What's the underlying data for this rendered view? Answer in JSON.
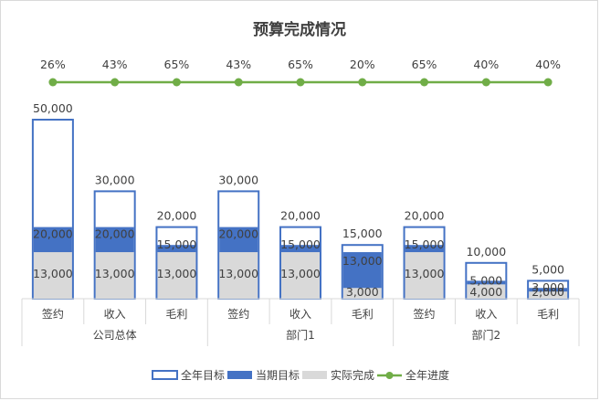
{
  "chart_data": {
    "type": "bar",
    "title": "预算完成情况",
    "groups": [
      {
        "name": "公司总体",
        "categories": [
          "签约",
          "收入",
          "毛利"
        ]
      },
      {
        "name": "部门1",
        "categories": [
          "签约",
          "收入",
          "毛利"
        ]
      },
      {
        "name": "部门2",
        "categories": [
          "签约",
          "收入",
          "毛利"
        ]
      }
    ],
    "series": [
      {
        "name": "全年目标",
        "kind": "bar-outline",
        "color": "#4472c4",
        "values": [
          50000,
          30000,
          20000,
          30000,
          20000,
          15000,
          20000,
          10000,
          5000
        ],
        "labels": [
          "50,000",
          "30,000",
          "20,000",
          "30,000",
          "20,000",
          "15,000",
          "20,000",
          "10,000",
          "5,000"
        ]
      },
      {
        "name": "当期目标",
        "kind": "bar-fill",
        "color": "#4472c4",
        "values": [
          20000,
          20000,
          15000,
          20000,
          15000,
          13000,
          15000,
          5000,
          3000
        ],
        "labels": [
          "20,000",
          "20,000",
          "15,000",
          "20,000",
          "15,000",
          "13,000",
          "15,000",
          "5,000",
          "3,000"
        ]
      },
      {
        "name": "实际完成",
        "kind": "bar-fill",
        "color": "#d9d9d9",
        "values": [
          13000,
          13000,
          13000,
          13000,
          13000,
          3000,
          13000,
          4000,
          2000
        ],
        "labels": [
          "13,000",
          "13,000",
          "13,000",
          "13,000",
          "13,000",
          "3,000",
          "13,000",
          "4,000",
          "2,000"
        ]
      },
      {
        "name": "全年进度",
        "kind": "line",
        "color": "#70ad47",
        "values": [
          0.26,
          0.43,
          0.65,
          0.43,
          0.65,
          0.2,
          0.65,
          0.4,
          0.4
        ],
        "labels": [
          "26%",
          "43%",
          "65%",
          "43%",
          "65%",
          "20%",
          "65%",
          "40%",
          "40%"
        ]
      }
    ],
    "y_max": 50000,
    "grid": false,
    "legend_position": "bottom"
  }
}
